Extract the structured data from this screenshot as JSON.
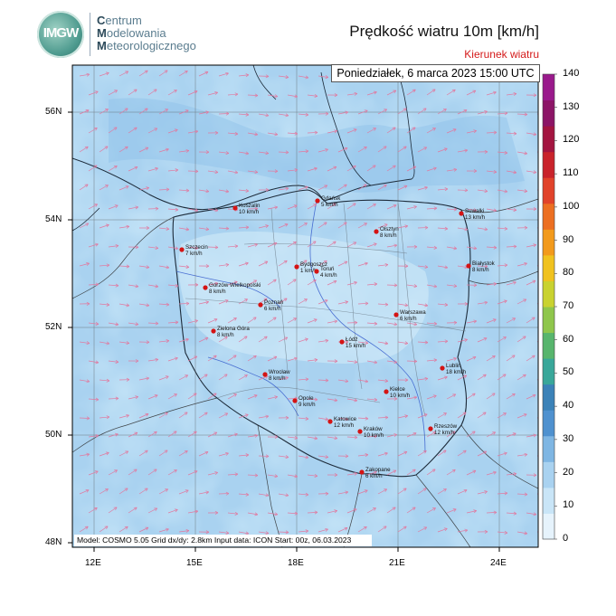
{
  "header": {
    "logo_text": "IMGW",
    "institution": [
      {
        "initial": "C",
        "rest": "entrum"
      },
      {
        "initial": "M",
        "rest": "odelowania"
      },
      {
        "initial": "M",
        "rest": "eteorologicznego"
      }
    ],
    "title": "Prędkość wiatru 10m [km/h]",
    "subtitle": "Kierunek wiatru"
  },
  "valid_time": "Poniedziałek, 6 marca 2023 15:00 UTC",
  "model_info": "Model: COSMO 5.05  Grid dx/dy: 2.8km  Input data: ICON  Start: 00z, 06.03.2023",
  "colorbar": {
    "unit": "km/h",
    "ticks": [
      0,
      10,
      20,
      30,
      40,
      50,
      60,
      70,
      80,
      90,
      100,
      110,
      120,
      130,
      140
    ],
    "colors": [
      "#e6f3fc",
      "#c9e5f7",
      "#a9d2f0",
      "#7fb6e3",
      "#4f91cf",
      "#3b82b8",
      "#39a79a",
      "#58b56d",
      "#8fc64c",
      "#c9d230",
      "#f0c21f",
      "#f29a1c",
      "#ec6f22",
      "#e1432a",
      "#c9232b",
      "#a31540",
      "#8c1566",
      "#9a1a8c"
    ]
  },
  "axes": {
    "lon_ticks": [
      "12E",
      "15E",
      "18E",
      "21E",
      "24E"
    ],
    "lat_ticks": [
      "56N",
      "54N",
      "52N",
      "50N",
      "48N"
    ]
  },
  "cities": [
    {
      "name": "Gdańsk",
      "speed": "5 km/h"
    },
    {
      "name": "Koszalin",
      "speed": "10 km/h"
    },
    {
      "name": "Suwałki",
      "speed": "13 km/h"
    },
    {
      "name": "Olsztyn",
      "speed": "8 km/h"
    },
    {
      "name": "Szczecin",
      "speed": "7 km/h"
    },
    {
      "name": "Bydgoszcz",
      "speed": "1 km/h"
    },
    {
      "name": "Toruń",
      "speed": "4 km/h"
    },
    {
      "name": "Białystok",
      "speed": "8 km/h"
    },
    {
      "name": "Gorzów Wielkopolski",
      "speed": "8 km/h"
    },
    {
      "name": "Poznań",
      "speed": "6 km/h"
    },
    {
      "name": "Warszawa",
      "speed": "6 km/h"
    },
    {
      "name": "Zielona Góra",
      "speed": "8 km/h"
    },
    {
      "name": "Łódź",
      "speed": "15 km/h"
    },
    {
      "name": "Wrocław",
      "speed": "8 km/h"
    },
    {
      "name": "Lublin",
      "speed": "18 km/h"
    },
    {
      "name": "Opole",
      "speed": "9 km/h"
    },
    {
      "name": "Kielce",
      "speed": "10 km/h"
    },
    {
      "name": "Katowice",
      "speed": "12 km/h"
    },
    {
      "name": "Kraków",
      "speed": "10 km/h"
    },
    {
      "name": "Rzeszów",
      "speed": "12 km/h"
    },
    {
      "name": "Zakopane",
      "speed": "6 km/h"
    }
  ],
  "colors": {
    "city_marker": "#d41414",
    "wind_arrow": "#e07aa0",
    "frame": "#000000"
  }
}
